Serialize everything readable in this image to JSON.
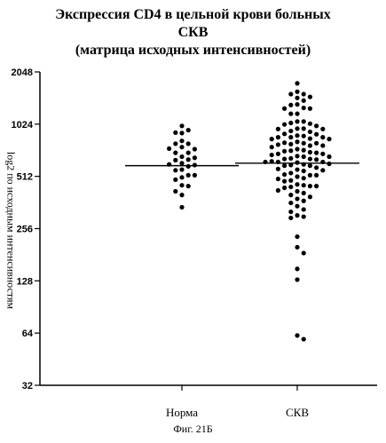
{
  "figure": {
    "title_line1": "Экспрессия CD4 в цельной крови больных",
    "title_line2": "СКВ",
    "subtitle": "(матрица исходных интенсивностей)",
    "caption": "Фиг. 21Б"
  },
  "chart_data": {
    "type": "scatter",
    "title": "Экспрессия CD4 в цельной крови больных СКВ",
    "subtitle": "(матрица исходных интенсивностей)",
    "ylabel": "log2 по исходным интенсивностям",
    "xlabel": "",
    "y_scale": "log2",
    "ylim": [
      32,
      2048
    ],
    "y_ticks": [
      32,
      64,
      128,
      256,
      512,
      1024,
      2048
    ],
    "y_tick_labels": [
      "32",
      "64",
      "128",
      "256",
      "512",
      "1024",
      "2048"
    ],
    "categories": [
      "Норма",
      "СКВ"
    ],
    "grid": false,
    "legend": "none",
    "colors": {
      "points": "#000000",
      "median": "#000000",
      "axes": "#000000"
    },
    "series": [
      {
        "category": "Норма",
        "median": 590,
        "values": [
          1000,
          945,
          910,
          915,
          820,
          790,
          790,
          755,
          735,
          740,
          700,
          700,
          665,
          640,
          655,
          635,
          610,
          595,
          600,
          585,
          560,
          555,
          520,
          520,
          505,
          490,
          455,
          450,
          420,
          400,
          340
        ]
      },
      {
        "category": "СКВ",
        "median": 610,
        "values": [
          1760,
          1575,
          1525,
          1525,
          1470,
          1450,
          1400,
          1330,
          1320,
          1270,
          1260,
          1260,
          1175,
          1175,
          1060,
          1060,
          1040,
          1030,
          1020,
          1000,
          965,
          965,
          960,
          960,
          935,
          925,
          900,
          895,
          880,
          875,
          860,
          860,
          860,
          845,
          840,
          840,
          810,
          795,
          800,
          795,
          785,
          780,
          770,
          770,
          755,
          735,
          725,
          720,
          715,
          705,
          700,
          690,
          690,
          680,
          670,
          665,
          665,
          650,
          645,
          645,
          640,
          620,
          620,
          625,
          620,
          615,
          600,
          605,
          595,
          590,
          590,
          575,
          560,
          565,
          555,
          550,
          535,
          520,
          525,
          520,
          510,
          500,
          495,
          485,
          480,
          460,
          455,
          450,
          450,
          445,
          440,
          425,
          420,
          410,
          400,
          390,
          380,
          370,
          360,
          345,
          330,
          320,
          305,
          300,
          295,
          230,
          200,
          185,
          150,
          130,
          62,
          59
        ]
      }
    ]
  }
}
